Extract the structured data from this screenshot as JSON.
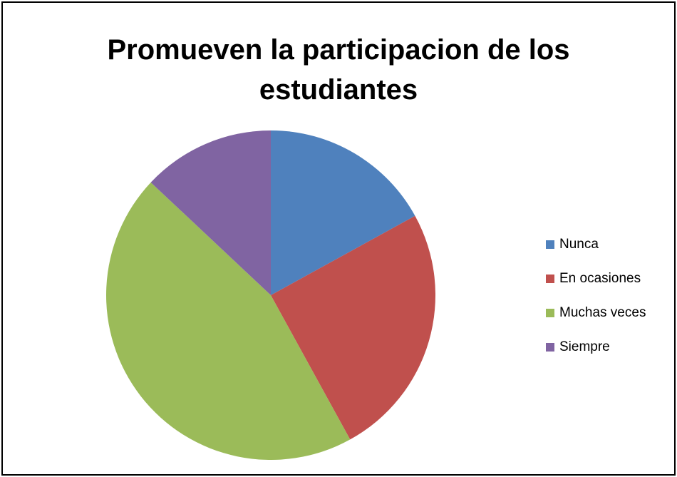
{
  "chart_data": {
    "type": "pie",
    "title": "Promueven la participacion de los estudiantes",
    "categories": [
      "Nunca",
      "En ocasiones",
      "Muchas veces",
      "Siempre"
    ],
    "values": [
      17,
      25,
      45,
      13
    ],
    "colors": [
      "#4f81bd",
      "#c0504d",
      "#9bbb59",
      "#8064a2"
    ],
    "legend": "right"
  }
}
